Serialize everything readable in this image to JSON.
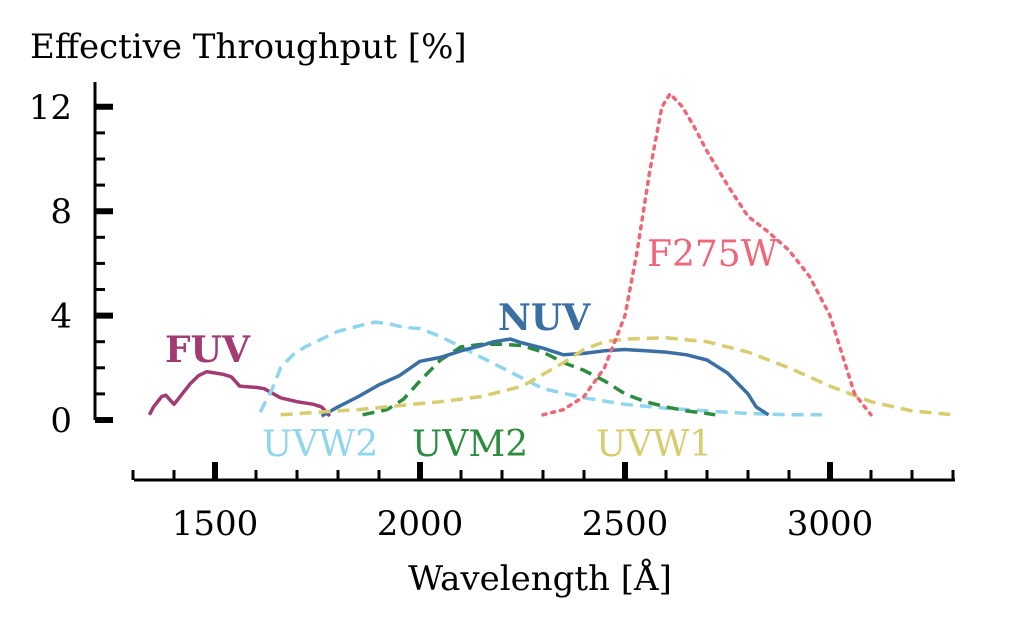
{
  "chart_data": {
    "type": "line",
    "title": "",
    "ylabel": "Effective Throughput [%]",
    "xlabel": "Wavelength [Å]",
    "xlim": [
      1300,
      3300
    ],
    "ylim": [
      -2.4,
      13
    ],
    "x_ticks": [
      1500,
      2000,
      2500,
      3000
    ],
    "y_ticks": [
      0,
      4,
      8,
      12
    ],
    "grid": false,
    "legend": "inline labels",
    "series": [
      {
        "name": "FUV",
        "color": "#a23b72",
        "style": "solid",
        "bold_label": true,
        "points": [
          [
            1340,
            0.2
          ],
          [
            1350,
            0.5
          ],
          [
            1370,
            0.9
          ],
          [
            1380,
            0.95
          ],
          [
            1400,
            0.6
          ],
          [
            1420,
            1.0
          ],
          [
            1440,
            1.4
          ],
          [
            1460,
            1.7
          ],
          [
            1480,
            1.85
          ],
          [
            1500,
            1.8
          ],
          [
            1520,
            1.75
          ],
          [
            1540,
            1.65
          ],
          [
            1560,
            1.3
          ],
          [
            1600,
            1.25
          ],
          [
            1620,
            1.2
          ],
          [
            1660,
            0.85
          ],
          [
            1700,
            0.7
          ],
          [
            1740,
            0.6
          ],
          [
            1760,
            0.5
          ],
          [
            1780,
            0.15
          ]
        ]
      },
      {
        "name": "UVW2",
        "color": "#8fd5ee",
        "style": "dashed",
        "bold_label": false,
        "points": [
          [
            1610,
            0.3
          ],
          [
            1640,
            1.2
          ],
          [
            1660,
            2.0
          ],
          [
            1690,
            2.5
          ],
          [
            1720,
            2.8
          ],
          [
            1760,
            3.1
          ],
          [
            1800,
            3.4
          ],
          [
            1850,
            3.6
          ],
          [
            1890,
            3.75
          ],
          [
            1920,
            3.7
          ],
          [
            1960,
            3.55
          ],
          [
            2000,
            3.5
          ],
          [
            2050,
            3.2
          ],
          [
            2100,
            2.8
          ],
          [
            2150,
            2.4
          ],
          [
            2200,
            2.0
          ],
          [
            2250,
            1.6
          ],
          [
            2300,
            1.2
          ],
          [
            2400,
            0.85
          ],
          [
            2500,
            0.6
          ],
          [
            2600,
            0.45
          ],
          [
            2700,
            0.35
          ],
          [
            2800,
            0.25
          ],
          [
            2900,
            0.2
          ],
          [
            2980,
            0.2
          ]
        ]
      },
      {
        "name": "UVM2",
        "color": "#2c8c3e",
        "style": "dashed",
        "bold_label": false,
        "points": [
          [
            1860,
            0.2
          ],
          [
            1920,
            0.4
          ],
          [
            1960,
            0.8
          ],
          [
            2000,
            1.5
          ],
          [
            2050,
            2.3
          ],
          [
            2100,
            2.8
          ],
          [
            2150,
            2.9
          ],
          [
            2200,
            2.9
          ],
          [
            2250,
            2.85
          ],
          [
            2300,
            2.6
          ],
          [
            2350,
            2.2
          ],
          [
            2400,
            1.9
          ],
          [
            2450,
            1.5
          ],
          [
            2500,
            1.0
          ],
          [
            2550,
            0.7
          ],
          [
            2600,
            0.5
          ],
          [
            2650,
            0.35
          ],
          [
            2700,
            0.25
          ],
          [
            2720,
            0.2
          ]
        ]
      },
      {
        "name": "NUV",
        "color": "#3a6fa3",
        "style": "solid",
        "bold_label": true,
        "points": [
          [
            1760,
            0.15
          ],
          [
            1800,
            0.5
          ],
          [
            1850,
            0.9
          ],
          [
            1900,
            1.35
          ],
          [
            1950,
            1.7
          ],
          [
            2000,
            2.25
          ],
          [
            2050,
            2.4
          ],
          [
            2100,
            2.65
          ],
          [
            2150,
            2.85
          ],
          [
            2180,
            3.0
          ],
          [
            2220,
            3.1
          ],
          [
            2250,
            2.95
          ],
          [
            2300,
            2.75
          ],
          [
            2350,
            2.5
          ],
          [
            2400,
            2.55
          ],
          [
            2450,
            2.65
          ],
          [
            2500,
            2.7
          ],
          [
            2550,
            2.65
          ],
          [
            2600,
            2.6
          ],
          [
            2650,
            2.5
          ],
          [
            2700,
            2.3
          ],
          [
            2750,
            1.8
          ],
          [
            2800,
            1.0
          ],
          [
            2820,
            0.5
          ],
          [
            2850,
            0.2
          ]
        ]
      },
      {
        "name": "UVW1",
        "color": "#d7cc6e",
        "style": "dashed",
        "bold_label": false,
        "points": [
          [
            1660,
            0.2
          ],
          [
            1750,
            0.3
          ],
          [
            1850,
            0.4
          ],
          [
            1950,
            0.55
          ],
          [
            2050,
            0.7
          ],
          [
            2150,
            0.9
          ],
          [
            2250,
            1.3
          ],
          [
            2350,
            2.2
          ],
          [
            2400,
            2.7
          ],
          [
            2450,
            3.0
          ],
          [
            2500,
            3.1
          ],
          [
            2600,
            3.15
          ],
          [
            2700,
            3.0
          ],
          [
            2800,
            2.6
          ],
          [
            2900,
            2.0
          ],
          [
            3000,
            1.3
          ],
          [
            3100,
            0.7
          ],
          [
            3200,
            0.35
          ],
          [
            3300,
            0.2
          ]
        ]
      },
      {
        "name": "F275W",
        "color": "#ee6677",
        "style": "dotted",
        "bold_label": false,
        "points": [
          [
            2300,
            0.2
          ],
          [
            2350,
            0.4
          ],
          [
            2400,
            0.9
          ],
          [
            2450,
            2.0
          ],
          [
            2500,
            4.0
          ],
          [
            2530,
            6.5
          ],
          [
            2560,
            9.5
          ],
          [
            2590,
            12.0
          ],
          [
            2610,
            12.5
          ],
          [
            2640,
            12.0
          ],
          [
            2670,
            11.2
          ],
          [
            2700,
            10.3
          ],
          [
            2750,
            9.0
          ],
          [
            2800,
            7.8
          ],
          [
            2850,
            7.2
          ],
          [
            2900,
            6.5
          ],
          [
            2950,
            5.5
          ],
          [
            3000,
            4.0
          ],
          [
            3030,
            2.5
          ],
          [
            3060,
            1.0
          ],
          [
            3100,
            0.2
          ]
        ]
      }
    ]
  }
}
